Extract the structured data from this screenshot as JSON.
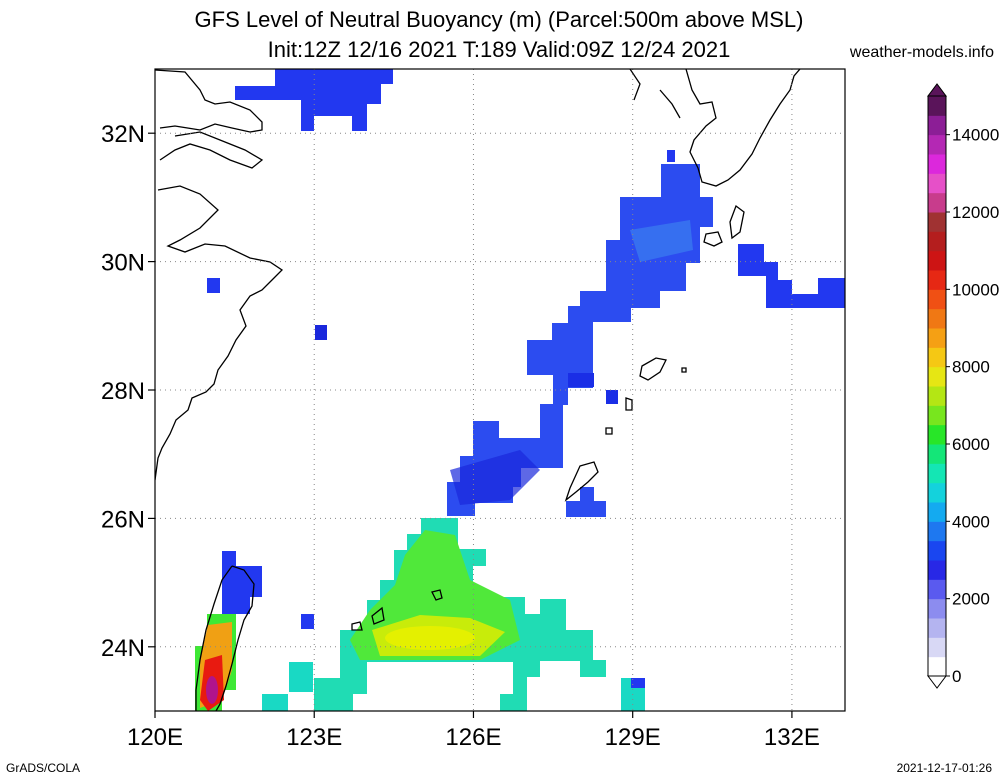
{
  "header": {
    "title_line1": "GFS Level of Neutral Buoyancy (m) (Parcel:500m above MSL)",
    "title_line2": "Init:12Z 12/16 2021 T:189 Valid:09Z 12/24 2021",
    "site": "weather-models.info"
  },
  "footer": {
    "credit": "GrADS/COLA",
    "timestamp": "2021-12-17-01:26"
  },
  "map": {
    "lon_range": [
      120,
      133
    ],
    "lat_range": [
      23,
      33
    ],
    "lon_ticks": [
      {
        "value": 120,
        "label": "120E"
      },
      {
        "value": 123,
        "label": "123E"
      },
      {
        "value": 126,
        "label": "126E"
      },
      {
        "value": 129,
        "label": "129E"
      },
      {
        "value": 132,
        "label": "132E"
      }
    ],
    "lat_ticks": [
      {
        "value": 24,
        "label": "24N"
      },
      {
        "value": 26,
        "label": "26N"
      },
      {
        "value": 28,
        "label": "28N"
      },
      {
        "value": 30,
        "label": "30N"
      },
      {
        "value": 32,
        "label": "32N"
      }
    ],
    "grid": "dotted",
    "field_colors": {
      "light": "#3a64f0",
      "mid": "#1a2ee6",
      "cyan": "#19d9c4",
      "green": "#3ee835",
      "yellow": "#d4f000",
      "red": "#e81a10"
    }
  },
  "colorbar": {
    "min": 0,
    "max": 15000,
    "labels": [
      {
        "value": 0,
        "label": "0"
      },
      {
        "value": 2000,
        "label": "2000"
      },
      {
        "value": 4000,
        "label": "4000"
      },
      {
        "value": 6000,
        "label": "6000"
      },
      {
        "value": 8000,
        "label": "8000"
      },
      {
        "value": 10000,
        "label": "10000"
      },
      {
        "value": 12000,
        "label": "12000"
      },
      {
        "value": 14000,
        "label": "14000"
      }
    ],
    "colors": [
      "#ffffff",
      "#d8d8f5",
      "#b4b4f0",
      "#8c8cef",
      "#5a5aef",
      "#2828e6",
      "#1a46f0",
      "#1e78f0",
      "#14aaf0",
      "#14d2dc",
      "#14e6b4",
      "#14e678",
      "#28e628",
      "#78e61e",
      "#b4e614",
      "#e6e614",
      "#f5c814",
      "#f5a014",
      "#f07814",
      "#f05014",
      "#e62814",
      "#cd1414",
      "#b41e1e",
      "#a03232",
      "#c83c8c",
      "#e650c8",
      "#dc28dc",
      "#b428b4",
      "#8c1e96",
      "#5a145a"
    ]
  }
}
